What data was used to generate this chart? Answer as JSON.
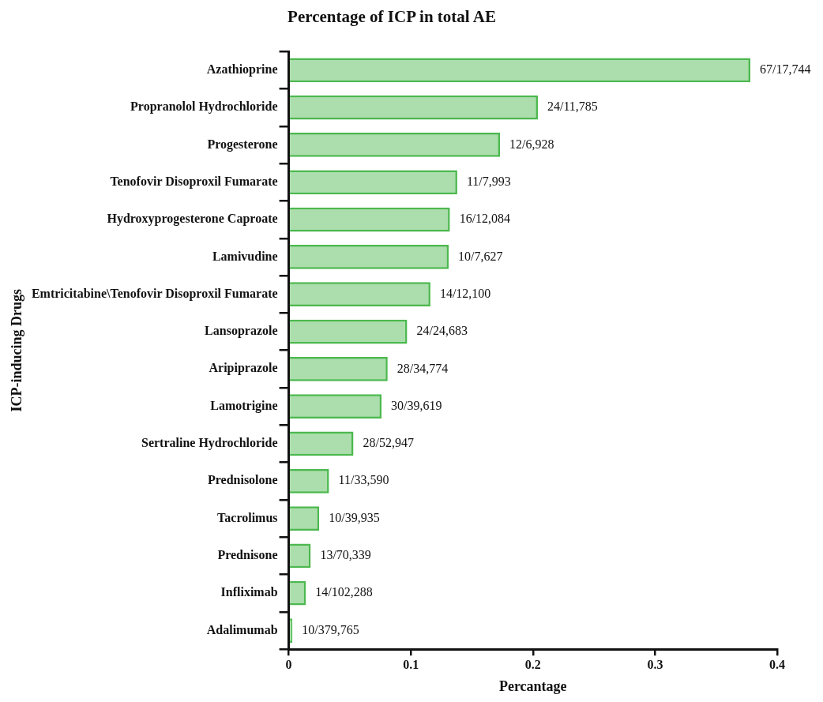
{
  "chart_data": {
    "type": "bar",
    "orientation": "horizontal",
    "title": "Percentage of ICP in total AE",
    "xlabel": "Percantage",
    "ylabel": "ICP-inducing Drugs",
    "categories": [
      "Azathioprine",
      "Propranolol Hydrochloride",
      "Progesterone",
      "Tenofovir Disoproxil Fumarate",
      "Hydroxyprogesterone Caproate",
      "Lamivudine",
      "Emtricitabine\\Tenofovir Disoproxil Fumarate",
      "Lansoprazole",
      "Aripiprazole",
      "Lamotrigine",
      "Sertraline Hydrochloride",
      "Prednisolone",
      "Tacrolimus",
      "Prednisone",
      "Infliximab",
      "Adalimumab"
    ],
    "values": [
      0.378,
      0.204,
      0.173,
      0.138,
      0.132,
      0.131,
      0.116,
      0.097,
      0.081,
      0.076,
      0.053,
      0.033,
      0.025,
      0.018,
      0.014,
      0.003
    ],
    "value_labels": [
      "67/17,744",
      "24/11,785",
      "12/6,928",
      "11/7,993",
      "16/12,084",
      "10/7,627",
      "14/12,100",
      "24/24,683",
      "28/34,774",
      "30/39,619",
      "28/52,947",
      "11/33,590",
      "10/39,935",
      "13/70,339",
      "14/102,288",
      "10/379,765"
    ],
    "color": "#4cb84f",
    "xlim": [
      0,
      0.4
    ],
    "xticks": [
      0,
      0.1,
      0.2,
      0.3,
      0.4
    ],
    "grid": false,
    "legend": false
  }
}
